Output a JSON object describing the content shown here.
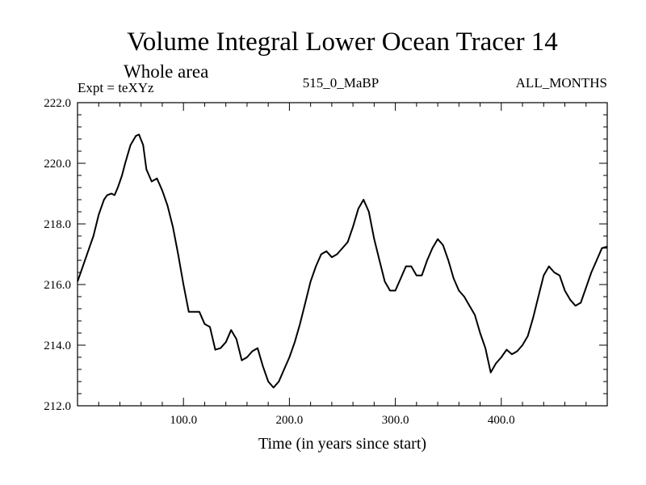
{
  "chart_data": {
    "type": "line",
    "title": "Volume Integral Lower Ocean Tracer 14",
    "subtitle": "Whole area",
    "left_label": "Expt = teXYz",
    "center_label": "515_0_MaBP",
    "right_label": "ALL_MONTHS",
    "xlabel": "Time (in years since start)",
    "ylabel": "",
    "xlim": [
      0,
      500
    ],
    "ylim": [
      212.0,
      222.0
    ],
    "x_ticks": [
      {
        "value": 100,
        "label": "100.0"
      },
      {
        "value": 200,
        "label": "200.0"
      },
      {
        "value": 300,
        "label": "300.0"
      },
      {
        "value": 400,
        "label": "400.0"
      }
    ],
    "y_ticks": [
      {
        "value": 212,
        "label": "212.0"
      },
      {
        "value": 214,
        "label": "214.0"
      },
      {
        "value": 216,
        "label": "216.0"
      },
      {
        "value": 218,
        "label": "218.0"
      },
      {
        "value": 220,
        "label": "220.0"
      },
      {
        "value": 222,
        "label": "222.0"
      }
    ],
    "series": [
      {
        "name": "Volume Integral Lower Ocean Tracer 14",
        "color": "#000000",
        "x": [
          0,
          5,
          10,
          15,
          20,
          25,
          28,
          32,
          35,
          38,
          42,
          45,
          50,
          55,
          58,
          62,
          65,
          70,
          75,
          80,
          85,
          90,
          95,
          100,
          105,
          110,
          115,
          120,
          125,
          130,
          135,
          140,
          145,
          150,
          155,
          160,
          165,
          170,
          175,
          180,
          185,
          190,
          195,
          200,
          205,
          210,
          215,
          220,
          225,
          230,
          235,
          240,
          245,
          250,
          255,
          260,
          265,
          270,
          275,
          280,
          285,
          290,
          295,
          300,
          305,
          310,
          315,
          320,
          325,
          330,
          335,
          340,
          345,
          350,
          355,
          360,
          365,
          370,
          375,
          380,
          385,
          390,
          395,
          400,
          405,
          410,
          415,
          420,
          425,
          430,
          435,
          440,
          445,
          450,
          455,
          460,
          465,
          470,
          475,
          480,
          485,
          490,
          495,
          500
        ],
        "values": [
          216.1,
          216.6,
          217.1,
          217.6,
          218.3,
          218.8,
          218.95,
          219.0,
          218.95,
          219.2,
          219.6,
          220.0,
          220.6,
          220.9,
          220.95,
          220.6,
          219.8,
          219.4,
          219.5,
          219.1,
          218.6,
          217.9,
          217.0,
          216.0,
          215.1,
          215.1,
          215.1,
          214.7,
          214.6,
          213.85,
          213.9,
          214.1,
          214.5,
          214.2,
          213.5,
          213.6,
          213.8,
          213.9,
          213.3,
          212.8,
          212.6,
          212.8,
          213.2,
          213.6,
          214.1,
          214.7,
          215.4,
          216.1,
          216.6,
          217.0,
          217.1,
          216.9,
          217.0,
          217.2,
          217.4,
          217.9,
          218.5,
          218.8,
          218.4,
          217.5,
          216.8,
          216.1,
          215.8,
          215.8,
          216.2,
          216.6,
          216.6,
          216.3,
          216.3,
          216.8,
          217.2,
          217.5,
          217.3,
          216.8,
          216.2,
          215.8,
          215.6,
          215.3,
          215.0,
          214.4,
          213.9,
          213.1,
          213.4,
          213.6,
          213.85,
          213.7,
          213.8,
          214.0,
          214.3,
          214.9,
          215.6,
          216.3,
          216.6,
          216.4,
          216.3,
          215.8,
          215.5,
          215.3,
          215.4,
          215.9,
          216.4,
          216.8,
          217.2,
          217.25
        ]
      }
    ]
  }
}
